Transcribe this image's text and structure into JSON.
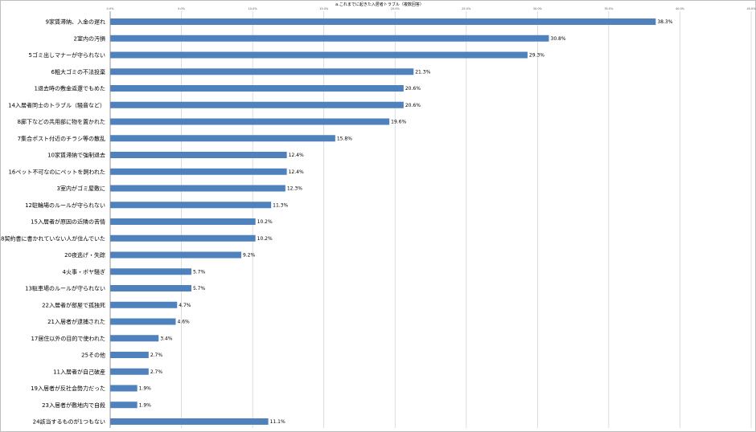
{
  "chart_data": {
    "type": "bar",
    "orientation": "horizontal",
    "title": "a.これまでに起きた入居者トラブル（複数回答）",
    "xlim": [
      0,
      45
    ],
    "xticks": [
      "0.0%",
      "5.0%",
      "10.0%",
      "15.0%",
      "20.0%",
      "25.0%",
      "30.0%",
      "35.0%",
      "40.0%",
      "45.0%"
    ],
    "grid": true,
    "bar_color": "#4f81bd",
    "categories": [
      "9家賃滞納、入金の遅れ",
      "2室内の汚損",
      "5ゴミ出しマナーが守られない",
      "6粗大ゴミの不法投棄",
      "1退去時の敷金返還でもめた",
      "14入居者同士のトラブル（騒音など）",
      "8廊下などの共用部に物を置かれた",
      "7集合ポスト付近のチラシ等の散乱",
      "10家賃滞納で強制退去",
      "16ペット不可なのにペットを飼われた",
      "3室内がゴミ屋敷に",
      "12駐輪場のルールが守られない",
      "15入居者が原因の近隣の苦情",
      "18契約書に書かれていない人が住んでいた",
      "20夜逃げ・失踪",
      "4火事・ボヤ騒ぎ",
      "13駐車場のルールが守られない",
      "22入居者が部屋で孤独死",
      "21入居者が逮捕された",
      "17居住以外の目的で使われた",
      "25その他",
      "11入居者が自己破産",
      "19入居者が反社会勢力だった",
      "23入居者が敷地内で自殺",
      "24該当するものが1つもない"
    ],
    "values": [
      38.3,
      30.8,
      29.3,
      21.3,
      20.6,
      20.6,
      19.6,
      15.8,
      12.4,
      12.4,
      12.3,
      11.3,
      10.2,
      10.2,
      9.2,
      5.7,
      5.7,
      4.7,
      4.6,
      3.4,
      2.7,
      2.7,
      1.9,
      1.9,
      11.1
    ],
    "value_labels": [
      "38.3%",
      "30.8%",
      "29.3%",
      "21.3%",
      "20.6%",
      "20.6%",
      "19.6%",
      "15.8%",
      "12.4%",
      "12.4%",
      "12.3%",
      "11.3%",
      "10.2%",
      "10.2%",
      "9.2%",
      "5.7%",
      "5.7%",
      "4.7%",
      "4.6%",
      "3.4%",
      "2.7%",
      "2.7%",
      "1.9%",
      "1.9%",
      "11.1%"
    ]
  }
}
